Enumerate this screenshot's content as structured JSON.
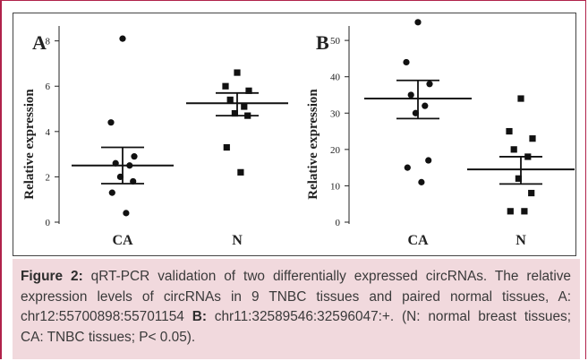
{
  "chart_data": [
    {
      "panel": "A",
      "type": "scatter",
      "categories": [
        "CA",
        "N"
      ],
      "ylabel": "Relative expression",
      "ylim": [
        0,
        8.5
      ],
      "yticks": [
        0,
        2,
        4,
        6,
        8
      ],
      "series": [
        {
          "category": "CA",
          "marker": "circle",
          "values": [
            8.1,
            4.4,
            2.9,
            2.6,
            2.5,
            2.0,
            1.8,
            1.3,
            0.4
          ],
          "mean": 2.5,
          "sem_low": 1.7,
          "sem_high": 3.3
        },
        {
          "category": "N",
          "marker": "square",
          "values": [
            6.6,
            6.0,
            5.8,
            5.4,
            5.1,
            4.8,
            4.7,
            3.3,
            2.2
          ],
          "mean": 5.25,
          "sem_low": 4.7,
          "sem_high": 5.7
        }
      ]
    },
    {
      "panel": "B",
      "type": "scatter",
      "categories": [
        "CA",
        "N"
      ],
      "ylabel": "Relative expression",
      "ylim": [
        0,
        52
      ],
      "yticks": [
        0,
        10,
        20,
        30,
        40,
        50
      ],
      "series": [
        {
          "category": "CA",
          "marker": "circle",
          "values": [
            55,
            44,
            38,
            35,
            32,
            30,
            17,
            15,
            11
          ],
          "mean": 34,
          "sem_low": 28.5,
          "sem_high": 39
        },
        {
          "category": "N",
          "marker": "square",
          "values": [
            34,
            25,
            23,
            20,
            18,
            12,
            8,
            3,
            3
          ],
          "mean": 14.5,
          "sem_low": 10.5,
          "sem_high": 18
        }
      ]
    }
  ],
  "caption": {
    "label": "Figure 2:",
    "text1": " qRT-PCR validation of two differentially expressed circRNAs. The relative expression levels of circRNAs in 9 TNBC tissues and paired normal tissues, A: chr12:55700898:55701154 ",
    "label_b": "B:",
    "text2": " chr11:32589546:32596047:+. (N: normal breast tissues; CA: TNBC tissues; P< 0.05)."
  },
  "colors": {
    "frame": "#b0224a",
    "caption_bg": "#f1d9dd",
    "marker": "#111111"
  }
}
